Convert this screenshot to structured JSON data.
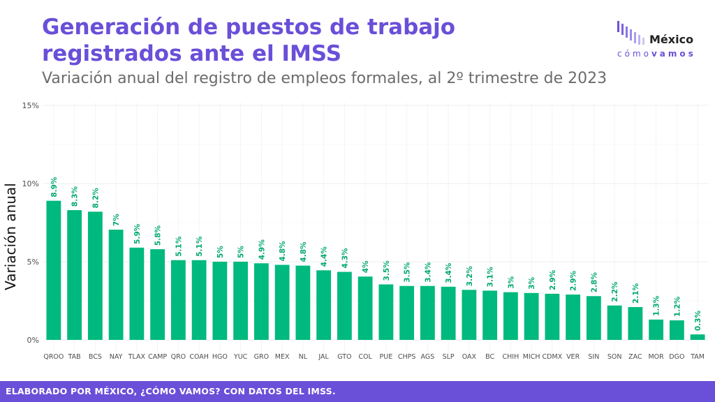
{
  "header": {
    "title": "Generación de puestos de trabajo registrados ante el IMSS",
    "subtitle": "Variación anual del registro de empleos formales, al 2º trimestre de 2023"
  },
  "logo": {
    "top_text": "México",
    "bottom_prefix": "cómo",
    "bottom_suffix": "vamos"
  },
  "footer": {
    "text": "ELABORADO POR MÉXICO, ¿CÓMO VAMOS? CON DATOS DEL IMSS."
  },
  "colors": {
    "accent": "#6a4fd8",
    "bar": "#00b97e",
    "label": "#00a872"
  },
  "chart_data": {
    "type": "bar",
    "ylabel": "Variación anual",
    "xlabel": "",
    "ylim": [
      0,
      15
    ],
    "yticks": [
      0,
      5,
      10,
      15
    ],
    "ytick_labels": [
      "0%",
      "5%",
      "10%",
      "15%"
    ],
    "grid": true,
    "categories": [
      "QROO",
      "TAB",
      "BCS",
      "NAY",
      "TLAX",
      "CAMP",
      "QRO",
      "COAH",
      "HGO",
      "YUC",
      "GRO",
      "MEX",
      "NL",
      "JAL",
      "GTO",
      "COL",
      "PUE",
      "CHPS",
      "AGS",
      "SLP",
      "OAX",
      "BC",
      "CHIH",
      "MICH",
      "CDMX",
      "VER",
      "SIN",
      "SON",
      "ZAC",
      "MOR",
      "DGO",
      "TAM"
    ],
    "values": [
      8.9,
      8.3,
      8.2,
      7.05,
      5.9,
      5.8,
      5.1,
      5.1,
      5.0,
      5.0,
      4.9,
      4.8,
      4.75,
      4.45,
      4.35,
      4.05,
      3.55,
      3.45,
      3.45,
      3.4,
      3.2,
      3.15,
      3.05,
      3.0,
      2.95,
      2.9,
      2.8,
      2.2,
      2.1,
      1.3,
      1.25,
      0.35
    ],
    "data_labels": [
      "8.9%",
      "8.3%",
      "8.2%",
      "7%",
      "5.9%",
      "5.8%",
      "5.1%",
      "5.1%",
      "5%",
      "5%",
      "4.9%",
      "4.8%",
      "4.8%",
      "4.4%",
      "4.3%",
      "4%",
      "3.5%",
      "3.5%",
      "3.4%",
      "3.4%",
      "3.2%",
      "3.1%",
      "3%",
      "3%",
      "2.9%",
      "2.9%",
      "2.8%",
      "2.2%",
      "2.1%",
      "1.3%",
      "1.2%",
      "0.3%"
    ]
  }
}
